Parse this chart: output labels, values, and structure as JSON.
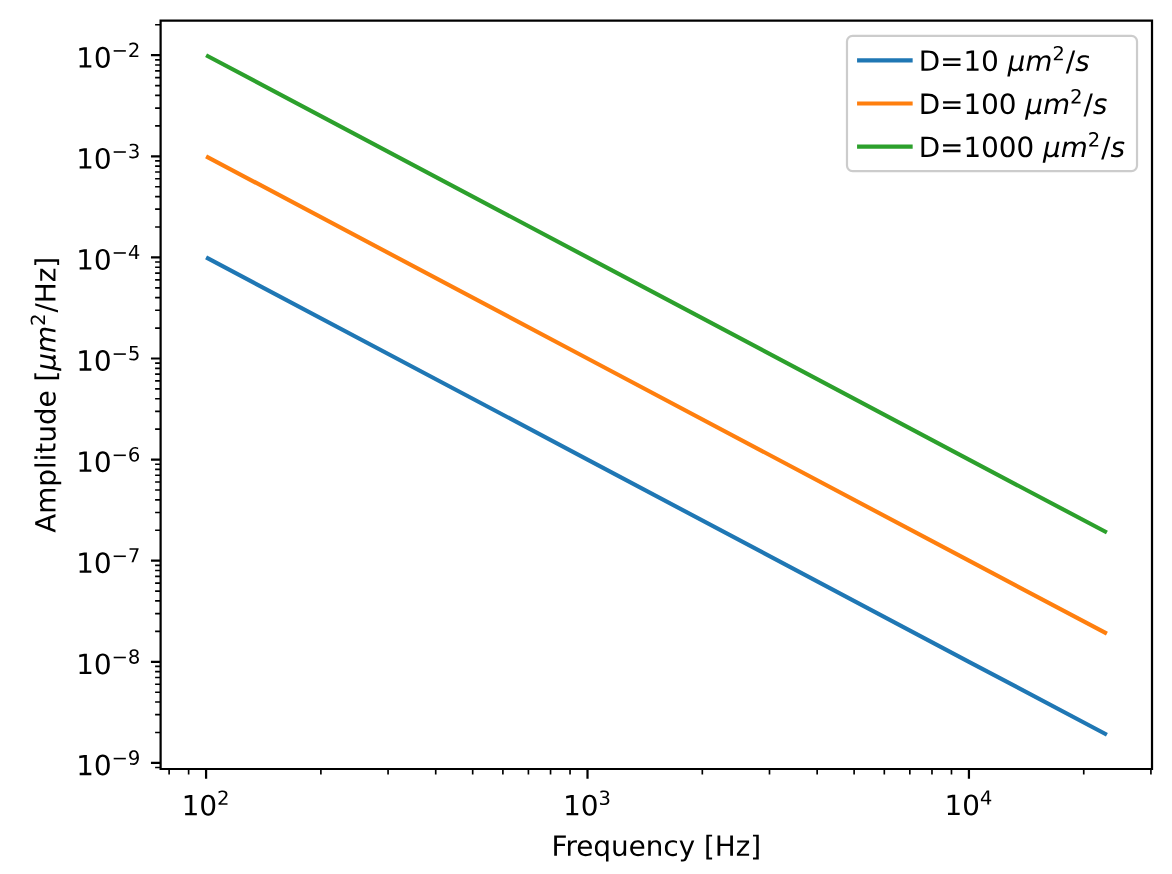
{
  "chart_data": {
    "type": "line",
    "xlabel": "Frequency [Hz]",
    "ylabel": "Amplitude [*μm*$^{2}$/Hz]",
    "log": "xy",
    "legend": "top right",
    "x": [
      100,
      1000,
      10000,
      23000
    ],
    "series": [
      {
        "name": "D=10 *μm*$^{2}$/*s*",
        "color": "#1f77b4",
        "values": [
          0.0001,
          1e-06,
          1e-08,
          1.9e-09
        ]
      },
      {
        "name": "D=100 *μm*$^{2}$/*s*",
        "color": "#ff7f0e",
        "values": [
          0.001,
          1e-05,
          1e-07,
          1.9e-08
        ]
      },
      {
        "name": "D=1000 *μm*$^{2}$/*s*",
        "color": "#2ca02c",
        "values": [
          0.01,
          0.0001,
          1e-06,
          1.9e-07
        ]
      }
    ],
    "xlim": [
      76,
      30200
    ],
    "ylim": [
      8.7e-10,
      0.022
    ],
    "xticks": [
      {
        "value": 100,
        "label": "10$^{2}$"
      },
      {
        "value": 1000,
        "label": "10$^{3}$"
      },
      {
        "value": 10000,
        "label": "10$^{4}$"
      }
    ],
    "yticks": [
      {
        "value": 1e-09,
        "label": "10$^{−9}$"
      },
      {
        "value": 1e-08,
        "label": "10$^{−8}$"
      },
      {
        "value": 1e-07,
        "label": "10$^{−7}$"
      },
      {
        "value": 1e-06,
        "label": "10$^{−6}$"
      },
      {
        "value": 1e-05,
        "label": "10$^{−5}$"
      },
      {
        "value": 0.0001,
        "label": "10$^{−4}$"
      },
      {
        "value": 0.001,
        "label": "10$^{−3}$"
      },
      {
        "value": 0.01,
        "label": "10$^{−2}$"
      }
    ]
  }
}
